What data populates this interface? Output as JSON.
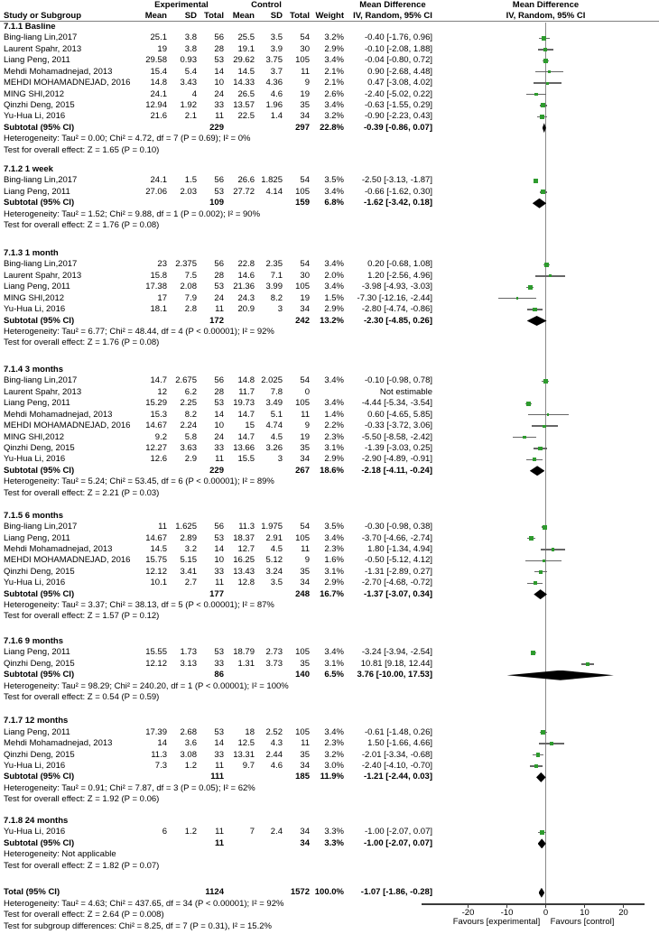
{
  "title_headers": {
    "experimental": "Experimental",
    "control": "Control",
    "mean_difference": "Mean Difference",
    "study_or_subgroup": "Study or Subgroup",
    "mean": "Mean",
    "sd": "SD",
    "total": "Total",
    "weight": "Weight",
    "method": "IV, Random, 95% CI"
  },
  "chart_data": {
    "type": "forest",
    "effect_measure": "Mean Difference",
    "model": "IV, Random, 95% CI",
    "x_ticks": [
      -20,
      -10,
      0,
      10,
      20
    ],
    "xlim": [
      -25,
      25
    ],
    "favours_left": "Favours [experimental]",
    "favours_right": "Favours [control]",
    "subtotal_label": "Subtotal (95% CI)",
    "sections": [
      {
        "label": "7.1.1 Basline",
        "studies": [
          {
            "name": "Bing-liang Lin,2017",
            "e_mean": "25.1",
            "e_sd": "3.8",
            "e_total": "56",
            "c_mean": "25.5",
            "c_sd": "3.5",
            "c_total": "54",
            "weight": "3.2%",
            "ci_text": "-0.40 [-1.76, 0.96]",
            "est": -0.4,
            "lo": -1.76,
            "hi": 0.96
          },
          {
            "name": "Laurent Spahr, 2013",
            "e_mean": "19",
            "e_sd": "3.8",
            "e_total": "28",
            "c_mean": "19.1",
            "c_sd": "3.9",
            "c_total": "30",
            "weight": "2.9%",
            "ci_text": "-0.10 [-2.08, 1.88]",
            "est": -0.1,
            "lo": -2.08,
            "hi": 1.88
          },
          {
            "name": "Liang Peng, 2011",
            "e_mean": "29.58",
            "e_sd": "0.93",
            "e_total": "53",
            "c_mean": "29.62",
            "c_sd": "3.75",
            "c_total": "105",
            "weight": "3.4%",
            "ci_text": "-0.04 [-0.80, 0.72]",
            "est": -0.04,
            "lo": -0.8,
            "hi": 0.72
          },
          {
            "name": "Mehdi Mohamadnejad, 2013",
            "e_mean": "15.4",
            "e_sd": "5.4",
            "e_total": "14",
            "c_mean": "14.5",
            "c_sd": "3.7",
            "c_total": "11",
            "weight": "2.1%",
            "ci_text": "0.90 [-2.68, 4.48]",
            "est": 0.9,
            "lo": -2.68,
            "hi": 4.48
          },
          {
            "name": "MEHDI MOHAMADNEJAD, 2016",
            "e_mean": "14.8",
            "e_sd": "3.43",
            "e_total": "10",
            "c_mean": "14.33",
            "c_sd": "4.36",
            "c_total": "9",
            "weight": "2.1%",
            "ci_text": "0.47 [-3.08, 4.02]",
            "est": 0.47,
            "lo": -3.08,
            "hi": 4.02
          },
          {
            "name": "MING SHI,2012",
            "e_mean": "24.1",
            "e_sd": "4",
            "e_total": "24",
            "c_mean": "26.5",
            "c_sd": "4.6",
            "c_total": "19",
            "weight": "2.6%",
            "ci_text": "-2.40 [-5.02, 0.22]",
            "est": -2.4,
            "lo": -5.02,
            "hi": 0.22
          },
          {
            "name": "Qinzhi Deng, 2015",
            "e_mean": "12.94",
            "e_sd": "1.92",
            "e_total": "33",
            "c_mean": "13.57",
            "c_sd": "1.96",
            "c_total": "35",
            "weight": "3.4%",
            "ci_text": "-0.63 [-1.55, 0.29]",
            "est": -0.63,
            "lo": -1.55,
            "hi": 0.29
          },
          {
            "name": "Yu-Hua Li, 2016",
            "e_mean": "21.6",
            "e_sd": "2.1",
            "e_total": "11",
            "c_mean": "22.5",
            "c_sd": "1.4",
            "c_total": "34",
            "weight": "3.2%",
            "ci_text": "-0.90 [-2.23, 0.43]",
            "est": -0.9,
            "lo": -2.23,
            "hi": 0.43
          }
        ],
        "subtotal": {
          "e_total": "229",
          "c_total": "297",
          "weight": "22.8%",
          "ci_text": "-0.39 [-0.86, 0.07]",
          "est": -0.39,
          "lo": -0.86,
          "hi": 0.07
        },
        "heterogeneity": "Heterogeneity: Tau² = 0.00; Chi² = 4.72, df = 7 (P = 0.69); I² = 0%",
        "test": "Test for overall effect: Z = 1.65 (P = 0.10)"
      },
      {
        "label": "7.1.2 1 week",
        "studies": [
          {
            "name": "Bing-liang Lin,2017",
            "e_mean": "24.1",
            "e_sd": "1.5",
            "e_total": "56",
            "c_mean": "26.6",
            "c_sd": "1.825",
            "c_total": "54",
            "weight": "3.5%",
            "ci_text": "-2.50 [-3.13, -1.87]",
            "est": -2.5,
            "lo": -3.13,
            "hi": -1.87
          },
          {
            "name": "Liang Peng, 2011",
            "e_mean": "27.06",
            "e_sd": "2.03",
            "e_total": "53",
            "c_mean": "27.72",
            "c_sd": "4.14",
            "c_total": "105",
            "weight": "3.4%",
            "ci_text": "-0.66 [-1.62, 0.30]",
            "est": -0.66,
            "lo": -1.62,
            "hi": 0.3
          }
        ],
        "subtotal": {
          "e_total": "109",
          "c_total": "159",
          "weight": "6.8%",
          "ci_text": "-1.62 [-3.42, 0.18]",
          "est": -1.62,
          "lo": -3.42,
          "hi": 0.18
        },
        "heterogeneity": "Heterogeneity: Tau² = 1.52; Chi² = 9.88, df = 1 (P = 0.002); I² = 90%",
        "test": "Test for overall effect: Z = 1.76 (P = 0.08)"
      },
      {
        "label": "7.1.3 1 month",
        "studies": [
          {
            "name": "Bing-liang Lin,2017",
            "e_mean": "23",
            "e_sd": "2.375",
            "e_total": "56",
            "c_mean": "22.8",
            "c_sd": "2.35",
            "c_total": "54",
            "weight": "3.4%",
            "ci_text": "0.20 [-0.68, 1.08]",
            "est": 0.2,
            "lo": -0.68,
            "hi": 1.08
          },
          {
            "name": "Laurent Spahr, 2013",
            "e_mean": "15.8",
            "e_sd": "7.5",
            "e_total": "28",
            "c_mean": "14.6",
            "c_sd": "7.1",
            "c_total": "30",
            "weight": "2.0%",
            "ci_text": "1.20 [-2.56, 4.96]",
            "est": 1.2,
            "lo": -2.56,
            "hi": 4.96
          },
          {
            "name": "Liang Peng, 2011",
            "e_mean": "17.38",
            "e_sd": "2.08",
            "e_total": "53",
            "c_mean": "21.36",
            "c_sd": "3.99",
            "c_total": "105",
            "weight": "3.4%",
            "ci_text": "-3.98 [-4.93, -3.03]",
            "est": -3.98,
            "lo": -4.93,
            "hi": -3.03
          },
          {
            "name": "MING SHI,2012",
            "e_mean": "17",
            "e_sd": "7.9",
            "e_total": "24",
            "c_mean": "24.3",
            "c_sd": "8.2",
            "c_total": "19",
            "weight": "1.5%",
            "ci_text": "-7.30 [-12.16, -2.44]",
            "est": -7.3,
            "lo": -12.16,
            "hi": -2.44
          },
          {
            "name": "Yu-Hua Li, 2016",
            "e_mean": "18.1",
            "e_sd": "2.8",
            "e_total": "11",
            "c_mean": "20.9",
            "c_sd": "3",
            "c_total": "34",
            "weight": "2.9%",
            "ci_text": "-2.80 [-4.74, -0.86]",
            "est": -2.8,
            "lo": -4.74,
            "hi": -0.86
          }
        ],
        "subtotal": {
          "e_total": "172",
          "c_total": "242",
          "weight": "13.2%",
          "ci_text": "-2.30 [-4.85, 0.26]",
          "est": -2.3,
          "lo": -4.85,
          "hi": 0.26
        },
        "heterogeneity": "Heterogeneity: Tau² = 6.77; Chi² = 48.44, df = 4 (P < 0.00001); I² = 92%",
        "test": "Test for overall effect: Z = 1.76 (P = 0.08)"
      },
      {
        "label": "7.1.4 3 months",
        "studies": [
          {
            "name": "Bing-liang Lin,2017",
            "e_mean": "14.7",
            "e_sd": "2.675",
            "e_total": "56",
            "c_mean": "14.8",
            "c_sd": "2.025",
            "c_total": "54",
            "weight": "3.4%",
            "ci_text": "-0.10 [-0.98, 0.78]",
            "est": -0.1,
            "lo": -0.98,
            "hi": 0.78
          },
          {
            "name": "Laurent Spahr, 2013",
            "e_mean": "12",
            "e_sd": "6.2",
            "e_total": "28",
            "c_mean": "11.7",
            "c_sd": "7.8",
            "c_total": "0",
            "weight": "",
            "ci_text": "Not estimable",
            "est": null,
            "lo": null,
            "hi": null
          },
          {
            "name": "Liang Peng, 2011",
            "e_mean": "15.29",
            "e_sd": "2.25",
            "e_total": "53",
            "c_mean": "19.73",
            "c_sd": "3.49",
            "c_total": "105",
            "weight": "3.4%",
            "ci_text": "-4.44 [-5.34, -3.54]",
            "est": -4.44,
            "lo": -5.34,
            "hi": -3.54
          },
          {
            "name": "Mehdi Mohamadnejad, 2013",
            "e_mean": "15.3",
            "e_sd": "8.2",
            "e_total": "14",
            "c_mean": "14.7",
            "c_sd": "5.1",
            "c_total": "11",
            "weight": "1.4%",
            "ci_text": "0.60 [-4.65, 5.85]",
            "est": 0.6,
            "lo": -4.65,
            "hi": 5.85
          },
          {
            "name": "MEHDI MOHAMADNEJAD, 2016",
            "e_mean": "14.67",
            "e_sd": "2.24",
            "e_total": "10",
            "c_mean": "15",
            "c_sd": "4.74",
            "c_total": "9",
            "weight": "2.2%",
            "ci_text": "-0.33 [-3.72, 3.06]",
            "est": -0.33,
            "lo": -3.72,
            "hi": 3.06
          },
          {
            "name": "MING SHI,2012",
            "e_mean": "9.2",
            "e_sd": "5.8",
            "e_total": "24",
            "c_mean": "14.7",
            "c_sd": "4.5",
            "c_total": "19",
            "weight": "2.3%",
            "ci_text": "-5.50 [-8.58, -2.42]",
            "est": -5.5,
            "lo": -8.58,
            "hi": -2.42
          },
          {
            "name": "Qinzhi Deng, 2015",
            "e_mean": "12.27",
            "e_sd": "3.63",
            "e_total": "33",
            "c_mean": "13.66",
            "c_sd": "3.26",
            "c_total": "35",
            "weight": "3.1%",
            "ci_text": "-1.39 [-3.03, 0.25]",
            "est": -1.39,
            "lo": -3.03,
            "hi": 0.25
          },
          {
            "name": "Yu-Hua Li, 2016",
            "e_mean": "12.6",
            "e_sd": "2.9",
            "e_total": "11",
            "c_mean": "15.5",
            "c_sd": "3",
            "c_total": "34",
            "weight": "2.9%",
            "ci_text": "-2.90 [-4.89, -0.91]",
            "est": -2.9,
            "lo": -4.89,
            "hi": -0.91
          }
        ],
        "subtotal": {
          "e_total": "229",
          "c_total": "267",
          "weight": "18.6%",
          "ci_text": "-2.18 [-4.11, -0.24]",
          "est": -2.18,
          "lo": -4.11,
          "hi": -0.24
        },
        "heterogeneity": "Heterogeneity: Tau² = 5.24; Chi² = 53.45, df = 6 (P < 0.00001); I² = 89%",
        "test": "Test for overall effect: Z = 2.21 (P = 0.03)"
      },
      {
        "label": "7.1.5 6 months",
        "studies": [
          {
            "name": "Bing-liang Lin,2017",
            "e_mean": "11",
            "e_sd": "1.625",
            "e_total": "56",
            "c_mean": "11.3",
            "c_sd": "1.975",
            "c_total": "54",
            "weight": "3.5%",
            "ci_text": "-0.30 [-0.98, 0.38]",
            "est": -0.3,
            "lo": -0.98,
            "hi": 0.38
          },
          {
            "name": "Liang Peng, 2011",
            "e_mean": "14.67",
            "e_sd": "2.89",
            "e_total": "53",
            "c_mean": "18.37",
            "c_sd": "2.91",
            "c_total": "105",
            "weight": "3.4%",
            "ci_text": "-3.70 [-4.66, -2.74]",
            "est": -3.7,
            "lo": -4.66,
            "hi": -2.74
          },
          {
            "name": "Mehdi Mohamadnejad, 2013",
            "e_mean": "14.5",
            "e_sd": "3.2",
            "e_total": "14",
            "c_mean": "12.7",
            "c_sd": "4.5",
            "c_total": "11",
            "weight": "2.3%",
            "ci_text": "1.80 [-1.34, 4.94]",
            "est": 1.8,
            "lo": -1.34,
            "hi": 4.94
          },
          {
            "name": "MEHDI MOHAMADNEJAD, 2016",
            "e_mean": "15.75",
            "e_sd": "5.15",
            "e_total": "10",
            "c_mean": "16.25",
            "c_sd": "5.12",
            "c_total": "9",
            "weight": "1.6%",
            "ci_text": "-0.50 [-5.12, 4.12]",
            "est": -0.5,
            "lo": -5.12,
            "hi": 4.12
          },
          {
            "name": "Qinzhi Deng, 2015",
            "e_mean": "12.12",
            "e_sd": "3.41",
            "e_total": "33",
            "c_mean": "13.43",
            "c_sd": "3.24",
            "c_total": "35",
            "weight": "3.1%",
            "ci_text": "-1.31 [-2.89, 0.27]",
            "est": -1.31,
            "lo": -2.89,
            "hi": 0.27
          },
          {
            "name": "Yu-Hua Li, 2016",
            "e_mean": "10.1",
            "e_sd": "2.7",
            "e_total": "11",
            "c_mean": "12.8",
            "c_sd": "3.5",
            "c_total": "34",
            "weight": "2.9%",
            "ci_text": "-2.70 [-4.68, -0.72]",
            "est": -2.7,
            "lo": -4.68,
            "hi": -0.72
          }
        ],
        "subtotal": {
          "e_total": "177",
          "c_total": "248",
          "weight": "16.7%",
          "ci_text": "-1.37 [-3.07, 0.34]",
          "est": -1.37,
          "lo": -3.07,
          "hi": 0.34
        },
        "heterogeneity": "Heterogeneity: Tau² = 3.37; Chi² = 38.13, df = 5 (P < 0.00001); I² = 87%",
        "test": "Test for overall effect: Z = 1.57 (P = 0.12)"
      },
      {
        "label": "7.1.6 9 months",
        "studies": [
          {
            "name": "Liang Peng, 2011",
            "e_mean": "15.55",
            "e_sd": "1.73",
            "e_total": "53",
            "c_mean": "18.79",
            "c_sd": "2.73",
            "c_total": "105",
            "weight": "3.4%",
            "ci_text": "-3.24 [-3.94, -2.54]",
            "est": -3.24,
            "lo": -3.94,
            "hi": -2.54
          },
          {
            "name": "Qinzhi Deng, 2015",
            "e_mean": "12.12",
            "e_sd": "3.13",
            "e_total": "33",
            "c_mean": "1.31",
            "c_sd": "3.73",
            "c_total": "35",
            "weight": "3.1%",
            "ci_text": "10.81 [9.18, 12.44]",
            "est": 10.81,
            "lo": 9.18,
            "hi": 12.44
          }
        ],
        "subtotal": {
          "e_total": "86",
          "c_total": "140",
          "weight": "6.5%",
          "ci_text": "3.76 [-10.00, 17.53]",
          "est": 3.76,
          "lo": -10.0,
          "hi": 17.53
        },
        "heterogeneity": "Heterogeneity: Tau² = 98.29; Chi² = 240.20, df = 1 (P < 0.00001); I² = 100%",
        "test": "Test for overall effect: Z = 0.54 (P = 0.59)"
      },
      {
        "label": "7.1.7 12 months",
        "studies": [
          {
            "name": "Liang Peng, 2011",
            "e_mean": "17.39",
            "e_sd": "2.68",
            "e_total": "53",
            "c_mean": "18",
            "c_sd": "2.52",
            "c_total": "105",
            "weight": "3.4%",
            "ci_text": "-0.61 [-1.48, 0.26]",
            "est": -0.61,
            "lo": -1.48,
            "hi": 0.26
          },
          {
            "name": "Mehdi Mohamadnejad, 2013",
            "e_mean": "14",
            "e_sd": "3.6",
            "e_total": "14",
            "c_mean": "12.5",
            "c_sd": "4.3",
            "c_total": "11",
            "weight": "2.3%",
            "ci_text": "1.50 [-1.66, 4.66]",
            "est": 1.5,
            "lo": -1.66,
            "hi": 4.66
          },
          {
            "name": "Qinzhi Deng, 2015",
            "e_mean": "11.3",
            "e_sd": "3.08",
            "e_total": "33",
            "c_mean": "13.31",
            "c_sd": "2.44",
            "c_total": "35",
            "weight": "3.2%",
            "ci_text": "-2.01 [-3.34, -0.68]",
            "est": -2.01,
            "lo": -3.34,
            "hi": -0.68
          },
          {
            "name": "Yu-Hua Li, 2016",
            "e_mean": "7.3",
            "e_sd": "1.2",
            "e_total": "11",
            "c_mean": "9.7",
            "c_sd": "4.6",
            "c_total": "34",
            "weight": "3.0%",
            "ci_text": "-2.40 [-4.10, -0.70]",
            "est": -2.4,
            "lo": -4.1,
            "hi": -0.7
          }
        ],
        "subtotal": {
          "e_total": "111",
          "c_total": "185",
          "weight": "11.9%",
          "ci_text": "-1.21 [-2.44, 0.03]",
          "est": -1.21,
          "lo": -2.44,
          "hi": 0.03
        },
        "heterogeneity": "Heterogeneity: Tau² = 0.91; Chi² = 7.87, df = 3 (P = 0.05); I² = 62%",
        "test": "Test for overall effect: Z = 1.92 (P = 0.06)"
      },
      {
        "label": "7.1.8 24 months",
        "studies": [
          {
            "name": "Yu-Hua Li, 2016",
            "e_mean": "6",
            "e_sd": "1.2",
            "e_total": "11",
            "c_mean": "7",
            "c_sd": "2.4",
            "c_total": "34",
            "weight": "3.3%",
            "ci_text": "-1.00 [-2.07, 0.07]",
            "est": -1.0,
            "lo": -2.07,
            "hi": 0.07
          }
        ],
        "subtotal": {
          "e_total": "11",
          "c_total": "34",
          "weight": "3.3%",
          "ci_text": "-1.00 [-2.07, 0.07]",
          "est": -1.0,
          "lo": -2.07,
          "hi": 0.07
        },
        "heterogeneity": "Heterogeneity: Not applicable",
        "test": "Test for overall effect: Z = 1.82 (P = 0.07)"
      }
    ],
    "total": {
      "label": "Total (95% CI)",
      "e_total": "1124",
      "c_total": "1572",
      "weight": "100.0%",
      "ci_text": "-1.07 [-1.86, -0.28]",
      "est": -1.07,
      "lo": -1.86,
      "hi": -0.28,
      "footnotes": [
        "Heterogeneity: Tau² = 4.63; Chi² = 437.65, df = 34 (P < 0.00001); I² = 92%",
        "Test for overall effect: Z = 2.64 (P = 0.008)",
        "Test for subgroup differences: Chi² = 8.25, df = 7 (P = 0.31), I² = 15.2%"
      ]
    }
  }
}
